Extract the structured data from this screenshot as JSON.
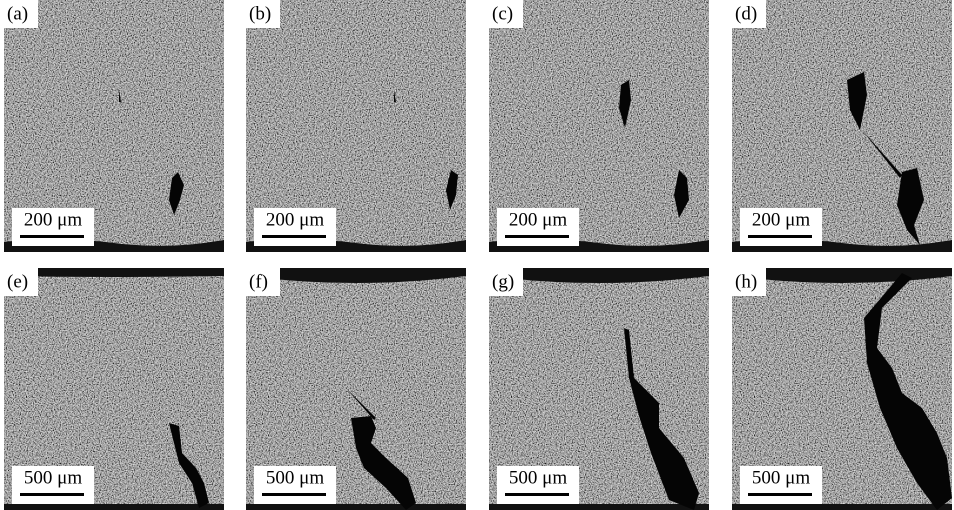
{
  "panels": [
    {
      "label": "(a)",
      "scale_bar": "200 μm"
    },
    {
      "label": "(b)",
      "scale_bar": "200 μm"
    },
    {
      "label": "(c)",
      "scale_bar": "200 μm"
    },
    {
      "label": "(d)",
      "scale_bar": "200 μm"
    },
    {
      "label": "(e)",
      "scale_bar": "500 μm"
    },
    {
      "label": "(f)",
      "scale_bar": "500 μm"
    },
    {
      "label": "(g)",
      "scale_bar": "500 μm"
    },
    {
      "label": "(h)",
      "scale_bar": "500 μm"
    }
  ]
}
